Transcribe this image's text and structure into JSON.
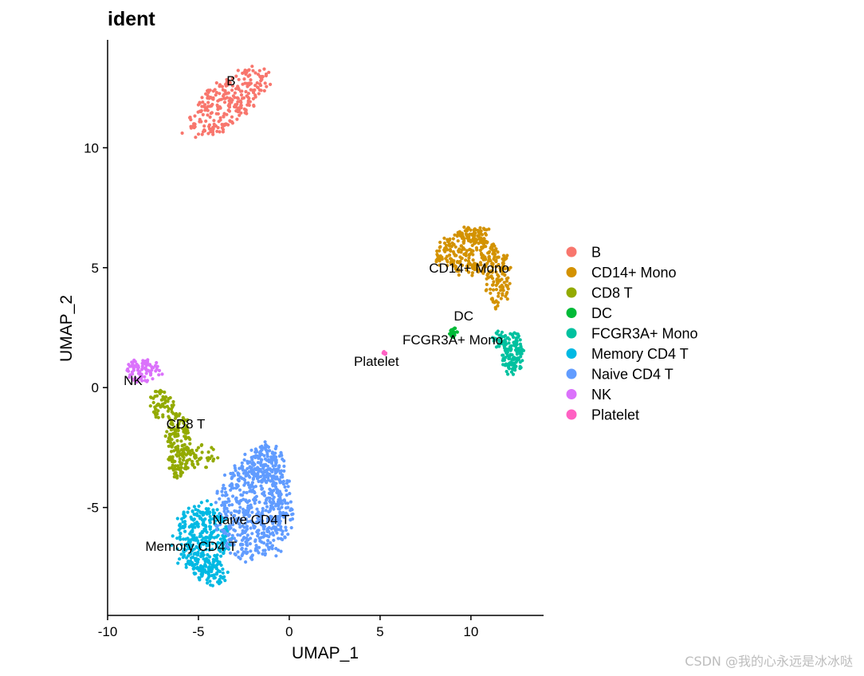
{
  "chart_data": {
    "type": "scatter",
    "title": "ident",
    "xlabel": "UMAP_1",
    "ylabel": "UMAP_2",
    "xlim": [
      -10,
      14
    ],
    "ylim": [
      -9.5,
      14.5
    ],
    "xticks": [
      -10,
      -5,
      0,
      5,
      10
    ],
    "xtick_labels": [
      "-10",
      "-5",
      "0",
      "5",
      "10"
    ],
    "yticks": [
      -5,
      0,
      5,
      10
    ],
    "ytick_labels": [
      "-5",
      "0",
      "5",
      "10"
    ],
    "grid": false,
    "legend_title": "",
    "legend_position": "right",
    "series": [
      {
        "name": "B",
        "color": "#F8766D",
        "label": "B",
        "label_at": [
          -3.2,
          12.6
        ],
        "region": [
          {
            "c": [
              -3.4,
              11.9
            ],
            "r": [
              2.6,
              1.0
            ],
            "rot": 30,
            "n": 280
          }
        ]
      },
      {
        "name": "CD14+ Mono",
        "color": "#D39200",
        "label": "CD14+ Mono",
        "label_at": [
          9.9,
          4.8
        ],
        "region": [
          {
            "c": [
              9.8,
              5.6
            ],
            "r": [
              1.8,
              0.9
            ],
            "rot": 0,
            "n": 230
          },
          {
            "c": [
              11.5,
              4.6
            ],
            "r": [
              0.7,
              1.3
            ],
            "rot": 0,
            "n": 110
          },
          {
            "c": [
              10.2,
              6.4
            ],
            "r": [
              0.9,
              0.4
            ],
            "rot": 0,
            "n": 60
          }
        ]
      },
      {
        "name": "CD8 T",
        "color": "#93AA00",
        "label": "CD8 T",
        "label_at": [
          -5.7,
          -1.7
        ],
        "region": [
          {
            "c": [
              -7.0,
              -0.7
            ],
            "r": [
              0.7,
              0.6
            ],
            "rot": -40,
            "n": 60
          },
          {
            "c": [
              -6.1,
              -2.4
            ],
            "r": [
              0.7,
              1.3
            ],
            "rot": 0,
            "n": 170
          },
          {
            "c": [
              -4.8,
              -2.9
            ],
            "r": [
              0.9,
              0.5
            ],
            "rot": 0,
            "n": 40
          }
        ]
      },
      {
        "name": "DC",
        "color": "#00BA38",
        "label": "DC",
        "label_at": [
          9.6,
          2.8
        ],
        "region": [
          {
            "c": [
              9.05,
              2.3
            ],
            "r": [
              0.25,
              0.2
            ],
            "rot": 45,
            "n": 22
          }
        ]
      },
      {
        "name": "FCGR3A+ Mono",
        "color": "#00C19F",
        "label": "FCGR3A+ Mono",
        "label_at": [
          9.0,
          1.8
        ],
        "region": [
          {
            "c": [
              12.3,
              1.4
            ],
            "r": [
              0.6,
              0.9
            ],
            "rot": 0,
            "n": 130
          },
          {
            "c": [
              11.6,
              2.0
            ],
            "r": [
              0.4,
              0.4
            ],
            "rot": 0,
            "n": 30
          }
        ]
      },
      {
        "name": "Memory CD4 T",
        "color": "#00B9E3",
        "label": "Memory CD4 T",
        "label_at": [
          -5.4,
          -6.8
        ],
        "region": [
          {
            "c": [
              -4.8,
              -6.3
            ],
            "r": [
              1.6,
              1.5
            ],
            "rot": 0,
            "n": 330
          },
          {
            "c": [
              -4.2,
              -7.8
            ],
            "r": [
              0.9,
              0.5
            ],
            "rot": 0,
            "n": 60
          }
        ]
      },
      {
        "name": "Naive CD4 T",
        "color": "#619CFF",
        "label": "Naive CD4 T",
        "label_at": [
          -2.1,
          -5.7
        ],
        "region": [
          {
            "c": [
              -1.9,
              -5.1
            ],
            "r": [
              2.1,
              2.2
            ],
            "rot": 0,
            "n": 560
          },
          {
            "c": [
              -1.3,
              -3.2
            ],
            "r": [
              1.1,
              0.9
            ],
            "rot": 0,
            "n": 130
          }
        ]
      },
      {
        "name": "NK",
        "color": "#DB72FB",
        "label": "NK",
        "label_at": [
          -8.6,
          0.1
        ],
        "region": [
          {
            "c": [
              -8.0,
              0.7
            ],
            "r": [
              1.0,
              0.5
            ],
            "rot": 0,
            "n": 95
          }
        ]
      },
      {
        "name": "Platelet",
        "color": "#FF61C3",
        "label": "Platelet",
        "label_at": [
          4.8,
          0.9
        ],
        "region": [
          {
            "c": [
              5.25,
              1.45
            ],
            "r": [
              0.1,
              0.06
            ],
            "rot": 0,
            "n": 8
          }
        ]
      }
    ]
  },
  "watermark": "CSDN @我的心永远是冰冰哒"
}
